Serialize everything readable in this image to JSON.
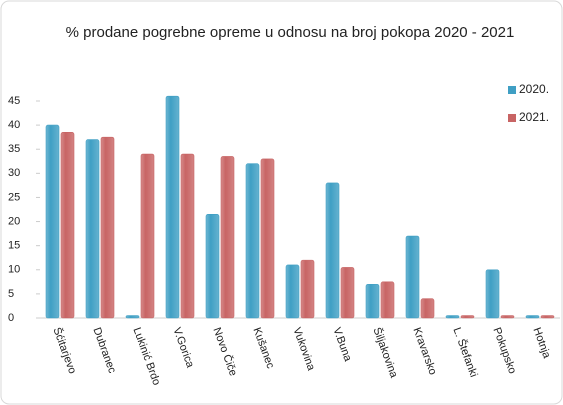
{
  "chart_data": {
    "type": "bar",
    "title": "% prodane pogrebne opreme u odnosu na broj pokopa 2020 - 2021",
    "categories": [
      "Šćitarjevo",
      "Dubranec",
      "Lukinić Brdo",
      "V.Gorica",
      "Novo Čiče",
      "Kušanec",
      "Vukovina",
      "V.Buna",
      "Šiljakovina",
      "Kravarsko",
      "L. Štefanki",
      "Pokupsko",
      "Hotnja"
    ],
    "series": [
      {
        "name": "2020.",
        "color": "#3f9fc4",
        "values": [
          40,
          37,
          0.5,
          46,
          21.5,
          32,
          11,
          28,
          7,
          17,
          0.5,
          10,
          0.5
        ]
      },
      {
        "name": "2021.",
        "color": "#c86464",
        "values": [
          38.5,
          37.5,
          34,
          34,
          33.5,
          33,
          12,
          10.5,
          7.5,
          4,
          0.5,
          0.5,
          0.5
        ]
      }
    ],
    "ylim": [
      0,
      45
    ],
    "yticks": [
      0,
      5,
      10,
      15,
      20,
      25,
      30,
      35,
      40,
      45
    ],
    "legend": "right"
  }
}
